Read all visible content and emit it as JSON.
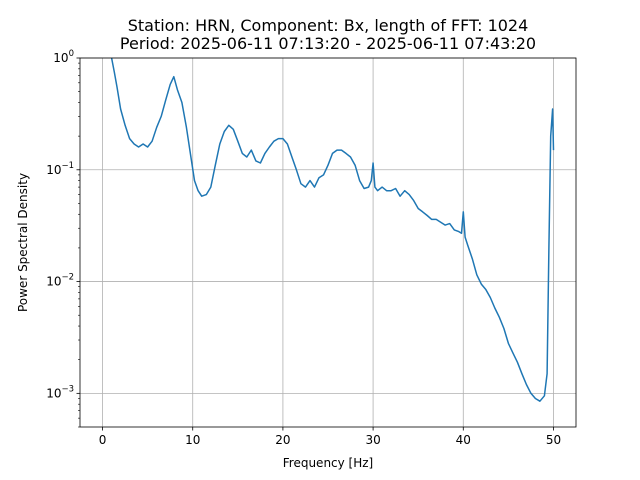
{
  "chart_data": {
    "type": "line",
    "title_line1": "Station: HRN, Component: Bx, length of FFT: 1024",
    "title_line2": "Period: 2025-06-11 07:13:20 - 2025-06-11 07:43:20",
    "xlabel": "Frequency [Hz]",
    "ylabel": "Power Spectral Density",
    "xscale": "linear",
    "yscale": "log",
    "xlim": [
      -2.5,
      52.5
    ],
    "ylim": [
      0.0005,
      1.0
    ],
    "xticks": [
      0,
      10,
      20,
      30,
      40,
      50
    ],
    "xtick_labels": [
      "0",
      "10",
      "20",
      "30",
      "40",
      "50"
    ],
    "yticks": [
      0.001,
      0.01,
      0.1,
      1.0
    ],
    "ytick_labels": [
      {
        "base": "10",
        "exp": "−3"
      },
      {
        "base": "10",
        "exp": "−2"
      },
      {
        "base": "10",
        "exp": "−1"
      },
      {
        "base": "10",
        "exp": "0"
      }
    ],
    "grid": true,
    "line_color": "#1f77b4",
    "series": [
      {
        "x": [
          1.0,
          1.3,
          1.6,
          2.0,
          2.5,
          3.0,
          3.5,
          4.0,
          4.5,
          5.0,
          5.5,
          6.0,
          6.5,
          7.0,
          7.5,
          7.9,
          8.3,
          8.8,
          9.3,
          9.8,
          10.2,
          10.6,
          11.0,
          11.5,
          12.0,
          12.5,
          13.0,
          13.5,
          14.0,
          14.5,
          15.0,
          15.5,
          16.0,
          16.5,
          17.0,
          17.5,
          18.0,
          18.5,
          19.0,
          19.5,
          20.0,
          20.5,
          21.0,
          21.5,
          22.0,
          22.5,
          23.0,
          23.5,
          24.0,
          24.5,
          25.0,
          25.5,
          26.0,
          26.5,
          27.0,
          27.5,
          28.0,
          28.5,
          29.0,
          29.5,
          29.8,
          30.0,
          30.2,
          30.5,
          31.0,
          31.5,
          32.0,
          32.5,
          33.0,
          33.5,
          34.0,
          34.5,
          35.0,
          35.5,
          36.0,
          36.5,
          37.0,
          37.5,
          38.0,
          38.5,
          39.0,
          39.5,
          39.8,
          40.0,
          40.2,
          40.5,
          41.0,
          41.5,
          42.0,
          42.5,
          43.0,
          43.5,
          44.0,
          44.5,
          45.0,
          45.5,
          46.0,
          46.5,
          47.0,
          47.5,
          48.0,
          48.5,
          49.0,
          49.3,
          49.5,
          49.7,
          49.9,
          50.0
        ],
        "y": [
          1.0,
          0.75,
          0.55,
          0.35,
          0.25,
          0.19,
          0.17,
          0.16,
          0.17,
          0.16,
          0.18,
          0.24,
          0.3,
          0.42,
          0.58,
          0.68,
          0.52,
          0.4,
          0.24,
          0.13,
          0.08,
          0.065,
          0.058,
          0.06,
          0.07,
          0.11,
          0.17,
          0.22,
          0.25,
          0.23,
          0.18,
          0.14,
          0.13,
          0.15,
          0.12,
          0.115,
          0.14,
          0.16,
          0.18,
          0.19,
          0.19,
          0.17,
          0.13,
          0.1,
          0.075,
          0.07,
          0.08,
          0.07,
          0.085,
          0.09,
          0.11,
          0.14,
          0.15,
          0.15,
          0.14,
          0.13,
          0.11,
          0.08,
          0.068,
          0.07,
          0.08,
          0.115,
          0.07,
          0.065,
          0.07,
          0.065,
          0.065,
          0.068,
          0.058,
          0.065,
          0.06,
          0.053,
          0.045,
          0.042,
          0.039,
          0.036,
          0.036,
          0.034,
          0.032,
          0.033,
          0.029,
          0.028,
          0.027,
          0.042,
          0.025,
          0.021,
          0.016,
          0.0115,
          0.0095,
          0.0085,
          0.0072,
          0.0058,
          0.0048,
          0.0038,
          0.0028,
          0.0023,
          0.0019,
          0.0015,
          0.0012,
          0.001,
          0.0009,
          0.00085,
          0.00095,
          0.0015,
          0.02,
          0.2,
          0.35,
          0.15
        ]
      }
    ]
  }
}
